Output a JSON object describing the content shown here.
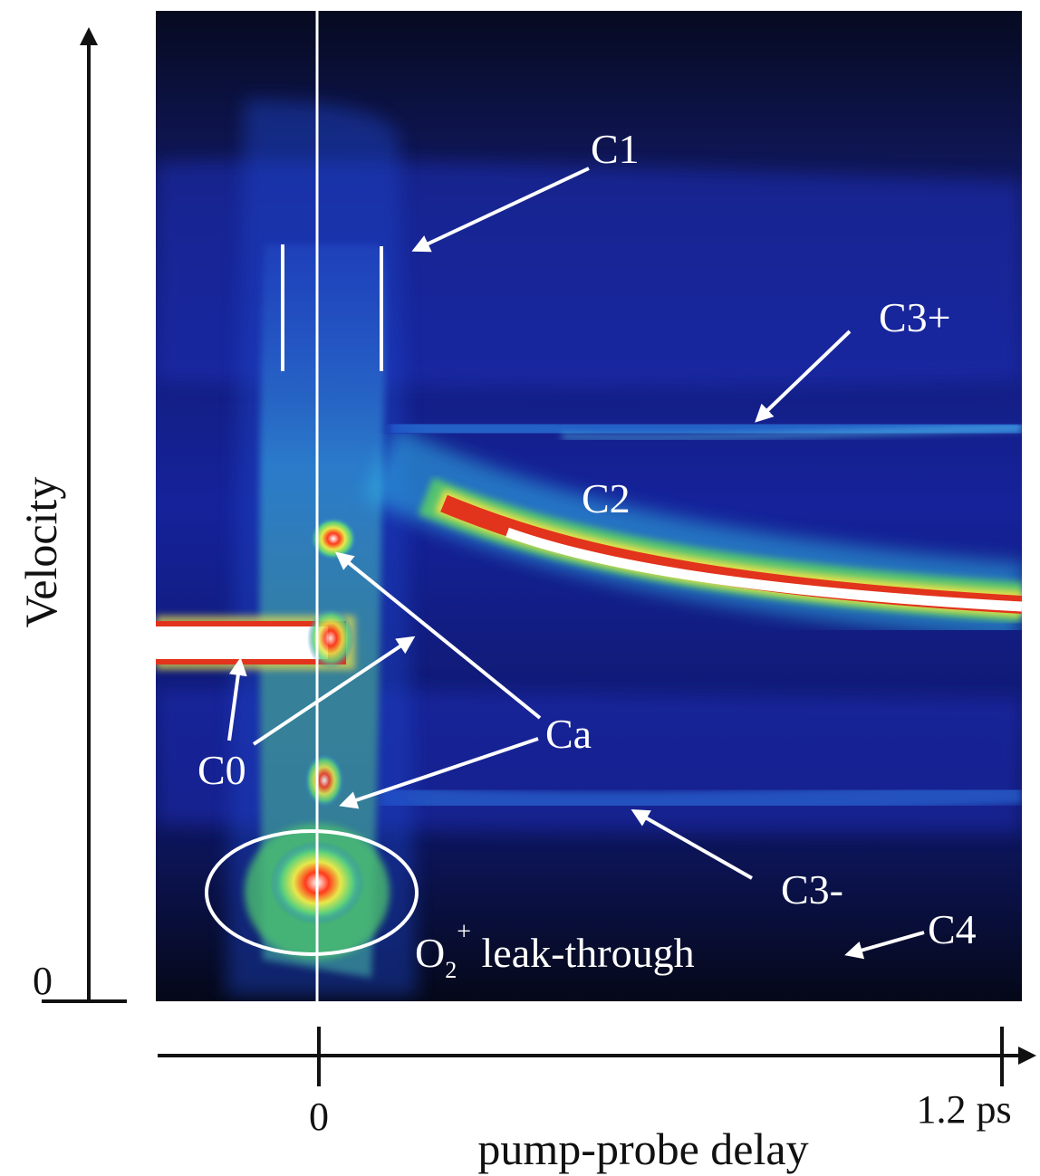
{
  "chart_data": {
    "type": "heatmap",
    "colormap": [
      "#0a1030",
      "#141e8c",
      "#1e4fd8",
      "#31a8ee",
      "#7fe07c",
      "#e0e84a",
      "#e33a1c",
      "#ffffff"
    ],
    "x_axis": {
      "label": "pump-probe delay",
      "ticks": [
        {
          "value": 0,
          "label": "0"
        },
        {
          "value": 1.2,
          "label": "1.2 ps"
        }
      ],
      "range_ps": [
        -0.26,
        1.2
      ]
    },
    "y_axis": {
      "label": "Velocity",
      "ticks": [
        {
          "value": 0,
          "label": "0"
        }
      ]
    },
    "annotations": {
      "c1": "C1",
      "c2": "C2",
      "c3plus": "C3+",
      "c3minus": "C3-",
      "c4": "C4",
      "ca": "Ca",
      "c0": "C0",
      "o2_main": "O",
      "o2_sub": "2",
      "o2_sup": "+",
      "o2_rest": " leak-through"
    }
  }
}
